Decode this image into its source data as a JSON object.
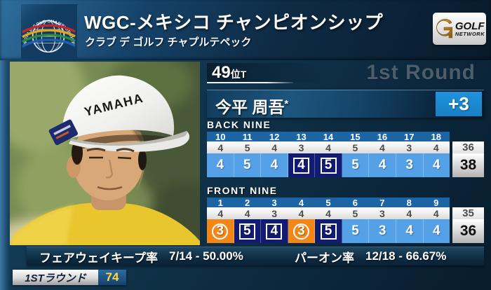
{
  "header": {
    "title": "WGC-メキシコ チャンピオンシップ",
    "subtitle": "クラブ デ ゴルフ チャプルテペック",
    "wgc_logo_arc_text": "WORLD GOLF CHAMPIONSHIPS®",
    "network_logo": {
      "line1": "GOLF",
      "line2": "NETWORK"
    }
  },
  "scoreboard": {
    "rank": "49",
    "rank_suffix": "位T",
    "round_label": "1st Round",
    "player_name": "今平 周吾",
    "player_mark": "*",
    "total_to_par": "+3",
    "back_nine": {
      "label": "BACK NINE",
      "holes": [
        "10",
        "11",
        "12",
        "13",
        "14",
        "15",
        "16",
        "17",
        "18"
      ],
      "par": [
        "4",
        "5",
        "4",
        "3",
        "4",
        "5",
        "4",
        "3",
        "4"
      ],
      "par_total": "36",
      "scores": [
        {
          "v": "4",
          "r": "par"
        },
        {
          "v": "5",
          "r": "par"
        },
        {
          "v": "4",
          "r": "par"
        },
        {
          "v": "4",
          "r": "bogey"
        },
        {
          "v": "5",
          "r": "bogey"
        },
        {
          "v": "5",
          "r": "par"
        },
        {
          "v": "4",
          "r": "par"
        },
        {
          "v": "3",
          "r": "par"
        },
        {
          "v": "4",
          "r": "par"
        }
      ],
      "score_total": "38"
    },
    "front_nine": {
      "label": "FRONT NINE",
      "holes": [
        "1",
        "2",
        "3",
        "4",
        "5",
        "6",
        "7",
        "8",
        "9"
      ],
      "par": [
        "4",
        "4",
        "3",
        "4",
        "4",
        "5",
        "3",
        "4",
        "4"
      ],
      "par_total": "35",
      "scores": [
        {
          "v": "3",
          "r": "birdie"
        },
        {
          "v": "5",
          "r": "bogey"
        },
        {
          "v": "4",
          "r": "bogey"
        },
        {
          "v": "3",
          "r": "birdie"
        },
        {
          "v": "5",
          "r": "bogey"
        },
        {
          "v": "5",
          "r": "par"
        },
        {
          "v": "3",
          "r": "par"
        },
        {
          "v": "4",
          "r": "par"
        },
        {
          "v": "4",
          "r": "par"
        }
      ],
      "score_total": "36"
    }
  },
  "stats": {
    "fairway_label": "フェアウェイキープ率",
    "fairway_value": "7/14 - 50.00%",
    "gir_label": "パーオン率",
    "gir_value": "12/18 - 66.67%"
  },
  "footer": {
    "round_label": "1STラウンド",
    "round_score": "74"
  },
  "colors": {
    "accent_blue": "#1e93dd",
    "hole_row_blue": "#1c64a4",
    "par_cell_blue": "#55a1e8",
    "bogey_navy": "#111b74",
    "birdie_orange": "#f28718",
    "round_text_gray": "#4d5d69",
    "footer_score_yellow": "#ffd83d"
  }
}
